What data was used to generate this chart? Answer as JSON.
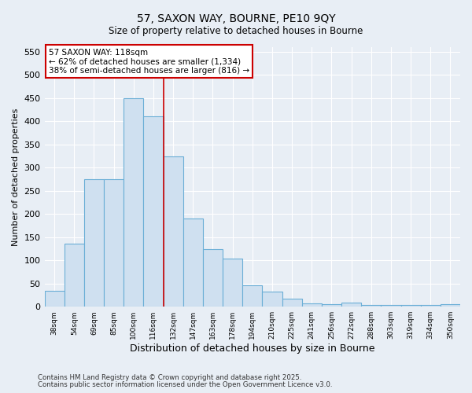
{
  "title_line1": "57, SAXON WAY, BOURNE, PE10 9QY",
  "title_line2": "Size of property relative to detached houses in Bourne",
  "xlabel": "Distribution of detached houses by size in Bourne",
  "ylabel": "Number of detached properties",
  "categories": [
    "38sqm",
    "54sqm",
    "69sqm",
    "85sqm",
    "100sqm",
    "116sqm",
    "132sqm",
    "147sqm",
    "163sqm",
    "178sqm",
    "194sqm",
    "210sqm",
    "225sqm",
    "241sqm",
    "256sqm",
    "272sqm",
    "288sqm",
    "303sqm",
    "319sqm",
    "334sqm",
    "350sqm"
  ],
  "values": [
    35,
    136,
    275,
    275,
    450,
    410,
    325,
    190,
    125,
    103,
    46,
    33,
    17,
    7,
    5,
    9,
    3,
    3,
    3,
    3,
    5
  ],
  "bar_color": "#cfe0f0",
  "bar_edge_color": "#6aaed6",
  "vline_x": 5.5,
  "vline_color": "#cc0000",
  "annotation_title": "57 SAXON WAY: 118sqm",
  "annotation_line2": "← 62% of detached houses are smaller (1,334)",
  "annotation_line3": "38% of semi-detached houses are larger (816) →",
  "annotation_box_color": "#ffffff",
  "annotation_box_edge": "#cc0000",
  "ylim": [
    0,
    560
  ],
  "yticks": [
    0,
    50,
    100,
    150,
    200,
    250,
    300,
    350,
    400,
    450,
    500,
    550
  ],
  "bg_color": "#e8eef5",
  "grid_color": "#ffffff",
  "footer_line1": "Contains HM Land Registry data © Crown copyright and database right 2025.",
  "footer_line2": "Contains public sector information licensed under the Open Government Licence v3.0.",
  "fig_width": 6.0,
  "fig_height": 5.0
}
